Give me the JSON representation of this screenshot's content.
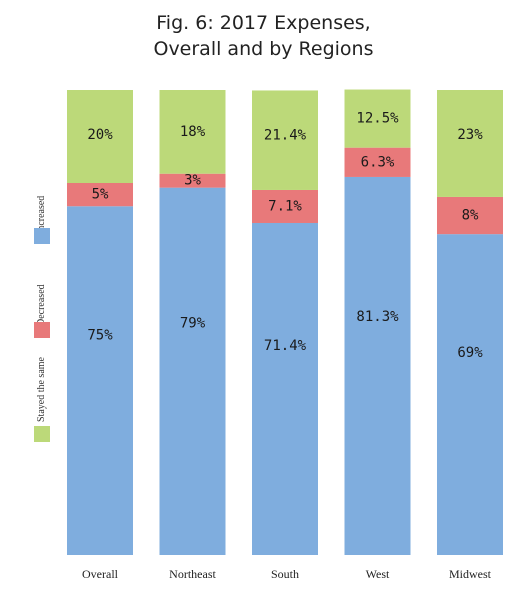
{
  "title_lines": [
    "Fig. 6: 2017 Expenses,",
    "Overall and by Regions"
  ],
  "chart_data": {
    "type": "bar",
    "stacked": true,
    "title": "Fig. 6: 2017 Expenses, Overall and by Regions",
    "categories": [
      "Overall",
      "Northeast",
      "South",
      "West",
      "Midwest"
    ],
    "series": [
      {
        "name": "Increased",
        "color": "#7fadde",
        "values": [
          75,
          79,
          71.4,
          81.3,
          69
        ],
        "labels": [
          "75%",
          "79%",
          "71.4%",
          "81.3%",
          "69%"
        ]
      },
      {
        "name": "Decreased",
        "color": "#e8797a",
        "values": [
          5,
          3,
          7.1,
          6.3,
          8
        ],
        "labels": [
          "5%",
          "3%",
          "7.1%",
          "6.3%",
          "8%"
        ]
      },
      {
        "name": "Stayed the same",
        "color": "#bcd979",
        "values": [
          20,
          18,
          21.4,
          12.5,
          23
        ],
        "labels": [
          "20%",
          "18%",
          "21.4%",
          "12.5%",
          "23%"
        ]
      }
    ],
    "ylim": [
      0,
      100
    ],
    "legend_position": "left"
  }
}
